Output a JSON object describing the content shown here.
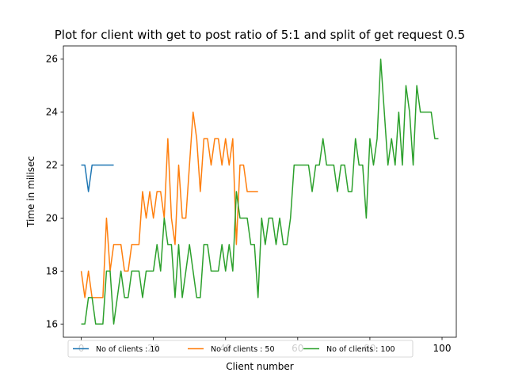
{
  "chart_data": {
    "type": "line",
    "title": "Plot for client with get to post ratio of 5:1 and split of get request 0.5",
    "xlabel": "Client number",
    "ylabel": "Time in milisec",
    "xlim": [
      -4.95,
      103.95
    ],
    "ylim": [
      15.5,
      26.5
    ],
    "xticks": [
      0,
      20,
      40,
      60,
      80,
      100
    ],
    "yticks": [
      16,
      18,
      20,
      22,
      24,
      26
    ],
    "grid": false,
    "legend": "lower-center",
    "series": [
      {
        "name": "No of clients : 10",
        "color": "#1f77b4",
        "values": [
          22,
          22,
          21,
          22,
          22,
          22,
          22,
          22,
          22,
          22
        ]
      },
      {
        "name": "No of clients : 50",
        "color": "#ff7f0e",
        "values": [
          18,
          17,
          18,
          17,
          17,
          17,
          17,
          20,
          18,
          19,
          19,
          19,
          18,
          18,
          19,
          19,
          19,
          21,
          20,
          21,
          20,
          21,
          21,
          20,
          23,
          20,
          19,
          22,
          20,
          20,
          22,
          24,
          23,
          21,
          23,
          23,
          22,
          23,
          23,
          22,
          23,
          22,
          23,
          19,
          22,
          22,
          21,
          21,
          21,
          21
        ]
      },
      {
        "name": "No of clients : 100",
        "color": "#2ca02c",
        "values": [
          16,
          16,
          17,
          17,
          16,
          16,
          16,
          18,
          18,
          16,
          17,
          18,
          17,
          17,
          18,
          18,
          18,
          17,
          18,
          18,
          18,
          19,
          18,
          20,
          19,
          19,
          17,
          19,
          17,
          18,
          19,
          18,
          17,
          17,
          19,
          19,
          18,
          18,
          18,
          19,
          18,
          19,
          18,
          21,
          20,
          20,
          20,
          19,
          19,
          17,
          20,
          19,
          20,
          20,
          19,
          20,
          19,
          19,
          20,
          22,
          22,
          22,
          22,
          22,
          21,
          22,
          22,
          23,
          22,
          22,
          22,
          21,
          22,
          22,
          21,
          21,
          23,
          22,
          22,
          20,
          23,
          22,
          23,
          26,
          24,
          22,
          23,
          22,
          24,
          22,
          25,
          24,
          22,
          25,
          24,
          24,
          24,
          24,
          23,
          23
        ]
      }
    ]
  }
}
